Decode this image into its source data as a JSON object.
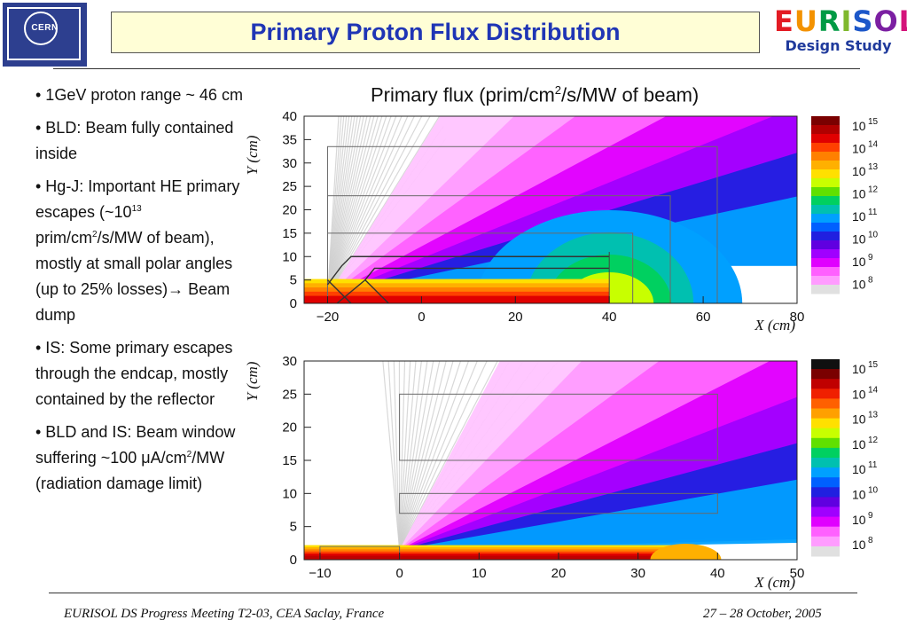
{
  "header": {
    "logo_left": "CERN",
    "title": "Primary Proton Flux Distribution",
    "logo_right_letters": [
      "E",
      "U",
      "R",
      "I",
      "S",
      "O",
      "L"
    ],
    "logo_right_colors": [
      "#e31b23",
      "#f39200",
      "#009a44",
      "#7fb82d",
      "#1c57c9",
      "#7b1fa2",
      "#d4137a"
    ],
    "logo_right_sub": "Design Study"
  },
  "bullets": [
    {
      "text": "• 1GeV proton range ~ 46 cm"
    },
    {
      "text": "• BLD: Beam fully contained inside"
    },
    {
      "pre": "• Hg-J: Important HE primary escapes (~10",
      "sup1": "13",
      "mid": " prim/cm",
      "sup2": "2",
      "post": "/s/MW of beam), mostly at small polar angles (up to 25% losses)→ Beam dump"
    },
    {
      "text": "• IS: Some primary escapes through the endcap, mostly contained by the reflector"
    },
    {
      "pre": "• BLD and IS: Beam window suffering ~100 μA/cm",
      "sup1": "2",
      "post": "/MW (radiation damage limit)"
    }
  ],
  "chart_title": {
    "pre": "Primary flux (prim/cm",
    "sup": "2",
    "post": "/s/MW of beam)"
  },
  "chart_data": [
    {
      "type": "heatmap",
      "title": "",
      "xlabel": "X (cm)",
      "ylabel": "Y (cm)",
      "xlim": [
        -25,
        80
      ],
      "ylim": [
        0,
        40
      ],
      "x_ticks": [
        -20,
        0,
        20,
        40,
        60,
        80
      ],
      "x_tick_labels": [
        "−20",
        "0",
        "20",
        "40",
        "60",
        "80"
      ],
      "y_ticks": [
        0,
        5,
        10,
        15,
        20,
        25,
        30,
        35,
        40
      ],
      "y_tick_labels": [
        "0",
        "5",
        "10",
        "15",
        "20",
        "25",
        "30",
        "35",
        "40"
      ],
      "colorbar_labels": [
        "10",
        "10",
        "10",
        "10",
        "10",
        "10",
        "10",
        "10"
      ],
      "colorbar_exponents": [
        "15",
        "14",
        "13",
        "12",
        "11",
        "10",
        "9",
        "8"
      ],
      "colorbar_colors": [
        "#7a0000",
        "#b00000",
        "#e00000",
        "#ff4000",
        "#ff8000",
        "#ffb000",
        "#ffe000",
        "#c8ff00",
        "#60e000",
        "#00d060",
        "#00c0b0",
        "#00a0ff",
        "#0060ff",
        "#2020e0",
        "#6000e0",
        "#a000ff",
        "#e000ff",
        "#ff60ff",
        "#ff9cff",
        "#e0e0e0"
      ]
    },
    {
      "type": "heatmap",
      "title": "",
      "xlabel": "X (cm)",
      "ylabel": "Y (cm)",
      "xlim": [
        -12,
        50
      ],
      "ylim": [
        0,
        30
      ],
      "x_ticks": [
        -10,
        0,
        10,
        20,
        30,
        40,
        50
      ],
      "x_tick_labels": [
        "−10",
        "0",
        "10",
        "20",
        "30",
        "40",
        "50"
      ],
      "y_ticks": [
        0,
        5,
        10,
        15,
        20,
        25,
        30
      ],
      "y_tick_labels": [
        "0",
        "5",
        "10",
        "15",
        "20",
        "25",
        "30"
      ],
      "colorbar_labels": [
        "10",
        "10",
        "10",
        "10",
        "10",
        "10",
        "10",
        "10"
      ],
      "colorbar_exponents": [
        "15",
        "14",
        "13",
        "12",
        "11",
        "10",
        "9",
        "8"
      ],
      "colorbar_colors": [
        "#101010",
        "#7a0000",
        "#c00000",
        "#f02000",
        "#ff6000",
        "#ffa000",
        "#ffe000",
        "#c8ff00",
        "#60e000",
        "#00d060",
        "#00c0b0",
        "#00a0ff",
        "#0060ff",
        "#2020e0",
        "#6000e0",
        "#a000ff",
        "#e000ff",
        "#ff60ff",
        "#ff9cff",
        "#e0e0e0"
      ]
    }
  ],
  "footer": {
    "left": "EURISOL DS Progress Meeting T2-03, CEA Saclay, France",
    "right": "27 – 28 October, 2005"
  }
}
